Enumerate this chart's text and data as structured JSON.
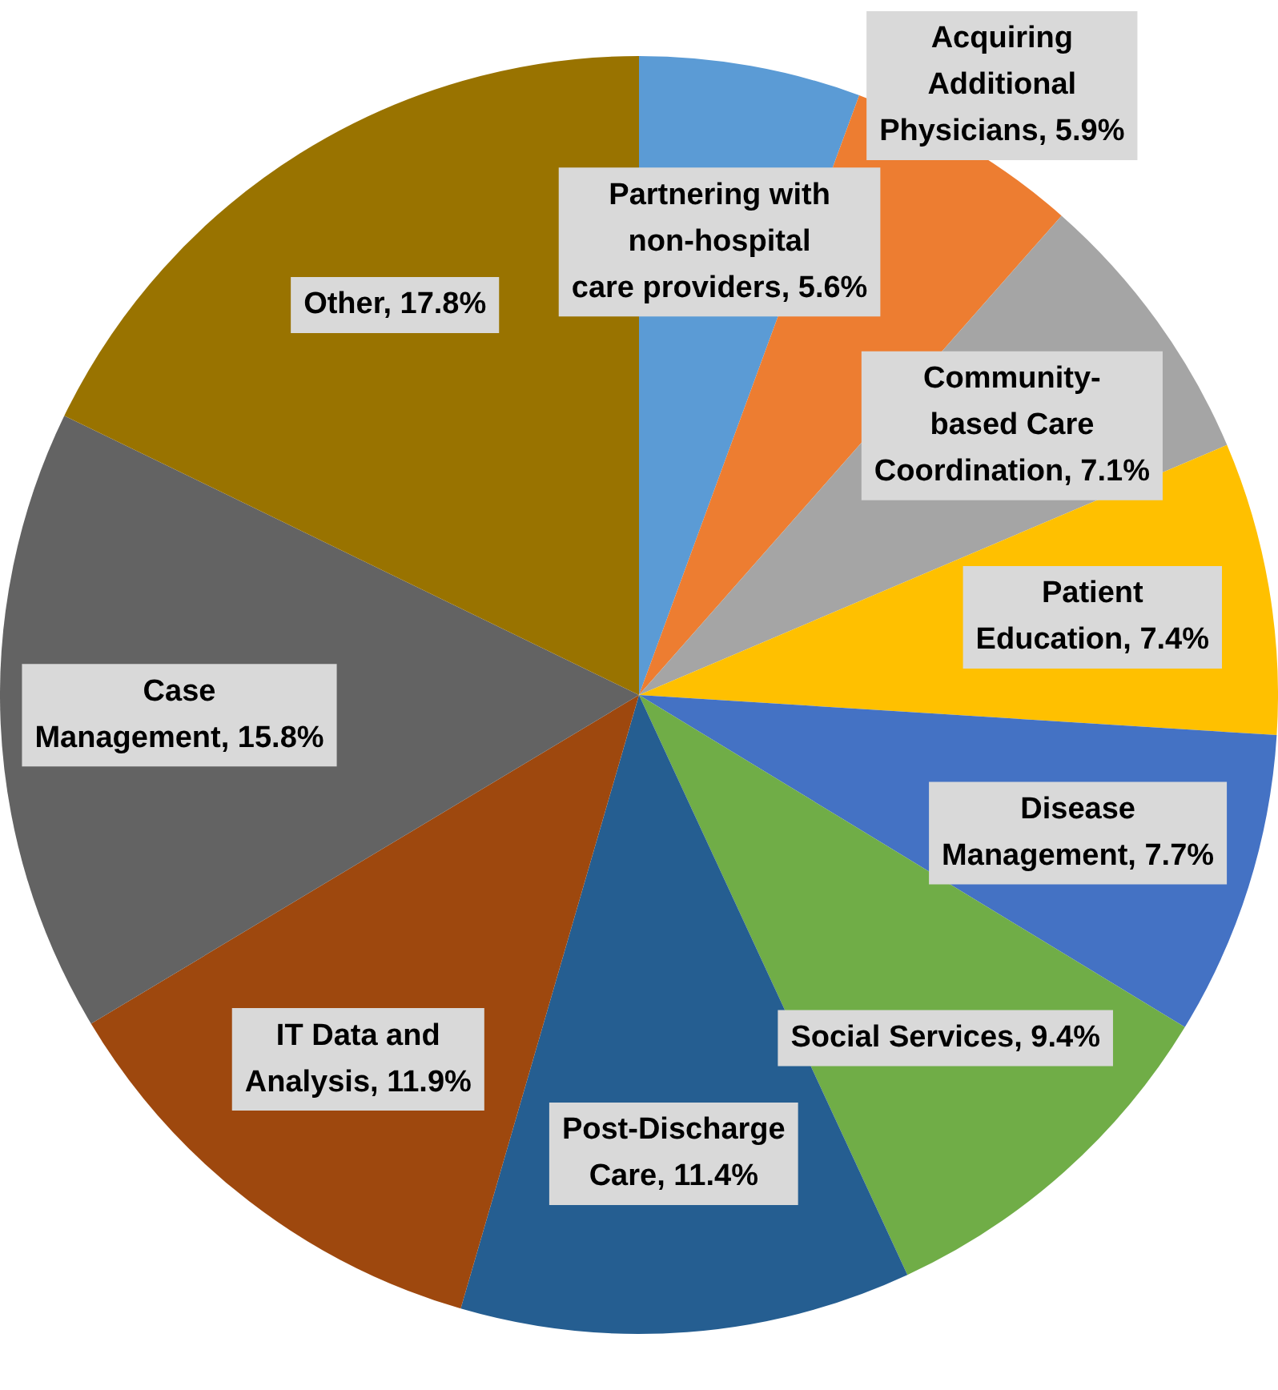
{
  "chart_data": {
    "type": "pie",
    "categories": [
      "Partnering with non-hospital care providers",
      "Acquiring Additional Physicians",
      "Community-based Care Coordination",
      "Patient Education",
      "Disease Management",
      "Social Services",
      "Post-Discharge Care",
      "IT Data and Analysis",
      "Case Management",
      "Other"
    ],
    "values": [
      5.6,
      5.9,
      7.1,
      7.4,
      7.7,
      9.4,
      11.4,
      11.9,
      15.8,
      17.8
    ],
    "value_labels": [
      "5.6%",
      "5.9%",
      "7.1%",
      "7.4%",
      "7.7%",
      "9.4%",
      "11.4%",
      "11.9%",
      "15.8%",
      "17.8%"
    ],
    "colors": [
      "#5b9bd5",
      "#ed7d31",
      "#a5a5a5",
      "#ffc000",
      "#4472c4",
      "#70ad47",
      "#255e91",
      "#9e480e",
      "#636363",
      "#997300"
    ],
    "legend": false
  }
}
